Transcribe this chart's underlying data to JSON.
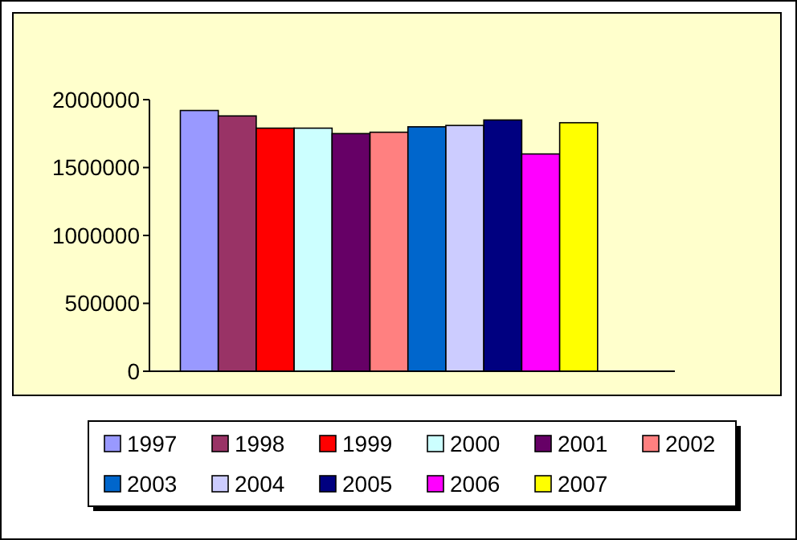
{
  "chart_data": {
    "type": "bar",
    "categories": [
      null
    ],
    "ylim": [
      0,
      2000000
    ],
    "yticks": [
      0,
      500000,
      1000000,
      1500000,
      2000000
    ],
    "grid": false,
    "legend": "bottom",
    "series": [
      {
        "name": "1997",
        "color": "#9999ff",
        "values": [
          1920000
        ]
      },
      {
        "name": "1998",
        "color": "#993366",
        "values": [
          1880000
        ]
      },
      {
        "name": "1999",
        "color": "#ff0000",
        "values": [
          1790000
        ]
      },
      {
        "name": "2000",
        "color": "#ccffff",
        "values": [
          1790000
        ]
      },
      {
        "name": "2001",
        "color": "#660066",
        "values": [
          1750000
        ]
      },
      {
        "name": "2002",
        "color": "#ff8080",
        "values": [
          1760000
        ]
      },
      {
        "name": "2003",
        "color": "#0066cc",
        "values": [
          1800000
        ]
      },
      {
        "name": "2004",
        "color": "#ccccff",
        "values": [
          1810000
        ]
      },
      {
        "name": "2005",
        "color": "#000080",
        "values": [
          1850000
        ]
      },
      {
        "name": "2006",
        "color": "#ff00ff",
        "values": [
          1600000
        ]
      },
      {
        "name": "2007",
        "color": "#ffff00",
        "values": [
          1830000
        ]
      }
    ]
  }
}
